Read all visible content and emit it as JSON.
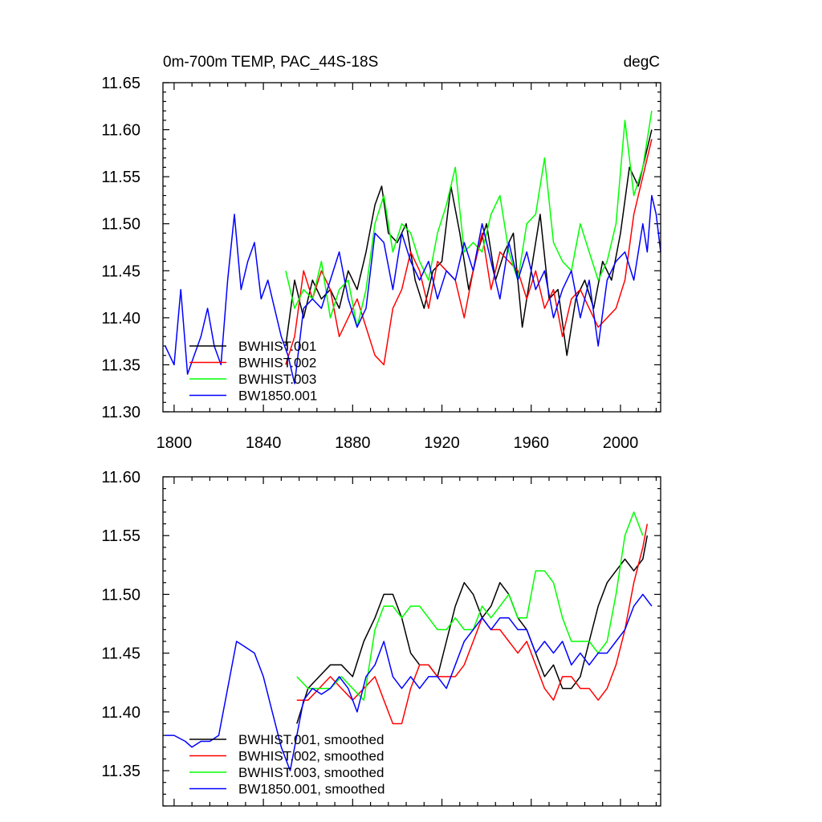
{
  "chart_data": [
    {
      "type": "line",
      "title": "0m-700m TEMP, PAC_44S-18S",
      "unit_label": "degC",
      "xlim": [
        1795,
        2018
      ],
      "ylim": [
        11.3,
        11.65
      ],
      "xticks": [
        1800,
        1840,
        1880,
        1920,
        1960,
        2000
      ],
      "yticks": [
        "11.30",
        "11.35",
        "11.40",
        "11.45",
        "11.50",
        "11.55",
        "11.60",
        "11.65"
      ],
      "legend_position": "bottom-left",
      "series": [
        {
          "name": "BWHIST.001",
          "color": "#000000",
          "x": [
            1850,
            1854,
            1858,
            1862,
            1866,
            1870,
            1874,
            1878,
            1882,
            1886,
            1890,
            1893,
            1896,
            1900,
            1904,
            1908,
            1912,
            1916,
            1920,
            1924,
            1928,
            1932,
            1936,
            1940,
            1944,
            1948,
            1952,
            1956,
            1960,
            1964,
            1968,
            1972,
            1976,
            1980,
            1984,
            1988,
            1992,
            1996,
            2000,
            2004,
            2008,
            2012,
            2014
          ],
          "y": [
            11.37,
            11.44,
            11.4,
            11.44,
            11.42,
            11.43,
            11.41,
            11.45,
            11.43,
            11.47,
            11.52,
            11.54,
            11.49,
            11.48,
            11.5,
            11.44,
            11.41,
            11.45,
            11.46,
            11.54,
            11.49,
            11.43,
            11.47,
            11.5,
            11.44,
            11.47,
            11.49,
            11.39,
            11.45,
            11.51,
            11.42,
            11.43,
            11.36,
            11.42,
            11.44,
            11.41,
            11.46,
            11.44,
            11.49,
            11.56,
            11.54,
            11.58,
            11.6
          ]
        },
        {
          "name": "BWHIST.002",
          "color": "#ff0000",
          "x": [
            1850,
            1854,
            1858,
            1862,
            1866,
            1870,
            1874,
            1878,
            1882,
            1886,
            1890,
            1894,
            1898,
            1902,
            1906,
            1910,
            1914,
            1918,
            1922,
            1926,
            1930,
            1934,
            1938,
            1942,
            1946,
            1950,
            1954,
            1958,
            1962,
            1966,
            1970,
            1974,
            1978,
            1982,
            1986,
            1990,
            1994,
            1998,
            2002,
            2006,
            2010,
            2014
          ],
          "y": [
            11.35,
            11.38,
            11.45,
            11.42,
            11.45,
            11.43,
            11.38,
            11.4,
            11.42,
            11.39,
            11.36,
            11.35,
            11.41,
            11.43,
            11.47,
            11.45,
            11.41,
            11.46,
            11.45,
            11.44,
            11.4,
            11.45,
            11.49,
            11.43,
            11.47,
            11.46,
            11.45,
            11.42,
            11.45,
            11.41,
            11.43,
            11.38,
            11.42,
            11.43,
            11.41,
            11.39,
            11.4,
            11.41,
            11.44,
            11.51,
            11.55,
            11.59
          ]
        },
        {
          "name": "BWHIST.003",
          "color": "#00ff00",
          "x": [
            1850,
            1854,
            1858,
            1862,
            1866,
            1870,
            1874,
            1878,
            1882,
            1886,
            1890,
            1894,
            1898,
            1902,
            1906,
            1910,
            1914,
            1918,
            1922,
            1926,
            1930,
            1934,
            1938,
            1942,
            1946,
            1950,
            1954,
            1958,
            1962,
            1966,
            1970,
            1974,
            1978,
            1982,
            1986,
            1990,
            1994,
            1998,
            2002,
            2006,
            2010,
            2014
          ],
          "y": [
            11.45,
            11.41,
            11.43,
            11.42,
            11.46,
            11.4,
            11.43,
            11.44,
            11.39,
            11.43,
            11.5,
            11.53,
            11.47,
            11.5,
            11.49,
            11.46,
            11.44,
            11.49,
            11.52,
            11.56,
            11.47,
            11.48,
            11.47,
            11.51,
            11.53,
            11.47,
            11.44,
            11.5,
            11.51,
            11.57,
            11.48,
            11.46,
            11.45,
            11.5,
            11.47,
            11.44,
            11.46,
            11.5,
            11.61,
            11.53,
            11.56,
            11.62
          ]
        },
        {
          "name": "BW1850.001",
          "color": "#0000ff",
          "x": [
            1796,
            1800,
            1803,
            1806,
            1809,
            1812,
            1815,
            1818,
            1821,
            1824,
            1827,
            1830,
            1833,
            1836,
            1839,
            1842,
            1845,
            1848,
            1851,
            1854,
            1858,
            1862,
            1866,
            1870,
            1874,
            1878,
            1882,
            1886,
            1890,
            1894,
            1898,
            1902,
            1906,
            1910,
            1914,
            1918,
            1922,
            1926,
            1930,
            1934,
            1938,
            1942,
            1946,
            1950,
            1954,
            1958,
            1962,
            1966,
            1970,
            1974,
            1978,
            1982,
            1986,
            1990,
            1994,
            1998,
            2002,
            2006,
            2010,
            2012,
            2014,
            2016,
            2018
          ],
          "y": [
            11.37,
            11.35,
            11.43,
            11.34,
            11.36,
            11.38,
            11.41,
            11.37,
            11.35,
            11.44,
            11.51,
            11.43,
            11.46,
            11.48,
            11.42,
            11.44,
            11.41,
            11.38,
            11.36,
            11.33,
            11.41,
            11.42,
            11.41,
            11.44,
            11.47,
            11.42,
            11.39,
            11.41,
            11.49,
            11.48,
            11.43,
            11.49,
            11.46,
            11.44,
            11.46,
            11.42,
            11.45,
            11.44,
            11.48,
            11.45,
            11.5,
            11.46,
            11.42,
            11.48,
            11.44,
            11.47,
            11.43,
            11.45,
            11.4,
            11.43,
            11.45,
            11.4,
            11.44,
            11.37,
            11.44,
            11.46,
            11.47,
            11.44,
            11.5,
            11.47,
            11.53,
            11.51,
            11.47
          ]
        }
      ]
    },
    {
      "type": "line",
      "title": "",
      "xlim": [
        1795,
        2018
      ],
      "ylim": [
        11.32,
        11.6
      ],
      "yticks": [
        "11.35",
        "11.40",
        "11.45",
        "11.50",
        "11.55",
        "11.60"
      ],
      "legend_position": "bottom-left",
      "series": [
        {
          "name": "BWHIST.001, smoothed",
          "color": "#000000",
          "x": [
            1855,
            1860,
            1865,
            1870,
            1875,
            1880,
            1885,
            1890,
            1894,
            1898,
            1902,
            1906,
            1910,
            1914,
            1918,
            1922,
            1926,
            1930,
            1934,
            1938,
            1942,
            1946,
            1950,
            1954,
            1958,
            1962,
            1966,
            1970,
            1974,
            1978,
            1982,
            1986,
            1990,
            1994,
            1998,
            2002,
            2006,
            2010,
            2012
          ],
          "y": [
            11.39,
            11.42,
            11.43,
            11.44,
            11.44,
            11.43,
            11.46,
            11.48,
            11.5,
            11.5,
            11.48,
            11.45,
            11.44,
            11.44,
            11.43,
            11.46,
            11.49,
            11.51,
            11.5,
            11.48,
            11.49,
            11.51,
            11.5,
            11.48,
            11.47,
            11.45,
            11.43,
            11.44,
            11.42,
            11.42,
            11.43,
            11.46,
            11.49,
            11.51,
            11.52,
            11.53,
            11.52,
            11.53,
            11.55
          ]
        },
        {
          "name": "BWHIST.002, smoothed",
          "color": "#ff0000",
          "x": [
            1855,
            1860,
            1865,
            1870,
            1875,
            1880,
            1885,
            1890,
            1894,
            1898,
            1902,
            1906,
            1910,
            1914,
            1918,
            1922,
            1926,
            1930,
            1934,
            1938,
            1942,
            1946,
            1950,
            1954,
            1958,
            1962,
            1966,
            1970,
            1974,
            1978,
            1982,
            1986,
            1990,
            1994,
            1998,
            2002,
            2006,
            2010,
            2012
          ],
          "y": [
            11.41,
            11.41,
            11.42,
            11.43,
            11.42,
            11.41,
            11.42,
            11.43,
            11.41,
            11.39,
            11.39,
            11.42,
            11.44,
            11.44,
            11.43,
            11.43,
            11.43,
            11.44,
            11.46,
            11.48,
            11.47,
            11.47,
            11.46,
            11.45,
            11.46,
            11.44,
            11.42,
            11.41,
            11.43,
            11.43,
            11.42,
            11.42,
            11.41,
            11.42,
            11.44,
            11.47,
            11.51,
            11.54,
            11.56
          ]
        },
        {
          "name": "BWHIST.003, smoothed",
          "color": "#00ff00",
          "x": [
            1855,
            1860,
            1865,
            1870,
            1875,
            1880,
            1885,
            1890,
            1894,
            1898,
            1902,
            1906,
            1910,
            1914,
            1918,
            1922,
            1926,
            1930,
            1934,
            1938,
            1942,
            1946,
            1950,
            1954,
            1958,
            1962,
            1966,
            1970,
            1974,
            1978,
            1982,
            1986,
            1990,
            1994,
            1998,
            2002,
            2006,
            2010
          ],
          "y": [
            11.43,
            11.42,
            11.42,
            11.42,
            11.43,
            11.42,
            11.41,
            11.47,
            11.49,
            11.49,
            11.48,
            11.49,
            11.49,
            11.48,
            11.47,
            11.47,
            11.48,
            11.47,
            11.47,
            11.49,
            11.48,
            11.49,
            11.5,
            11.48,
            11.48,
            11.52,
            11.52,
            11.51,
            11.48,
            11.46,
            11.46,
            11.46,
            11.45,
            11.46,
            11.5,
            11.55,
            11.57,
            11.55
          ]
        },
        {
          "name": "BW1850.001, smoothed",
          "color": "#0000ff",
          "x": [
            1796,
            1800,
            1805,
            1808,
            1812,
            1816,
            1820,
            1824,
            1828,
            1832,
            1836,
            1840,
            1844,
            1848,
            1852,
            1855,
            1858,
            1862,
            1866,
            1870,
            1874,
            1878,
            1882,
            1886,
            1890,
            1894,
            1898,
            1902,
            1906,
            1910,
            1914,
            1918,
            1922,
            1926,
            1930,
            1934,
            1938,
            1942,
            1946,
            1950,
            1954,
            1958,
            1962,
            1966,
            1970,
            1974,
            1978,
            1982,
            1986,
            1990,
            1994,
            1998,
            2002,
            2006,
            2010,
            2014
          ],
          "y": [
            11.38,
            11.38,
            11.375,
            11.37,
            11.375,
            11.375,
            11.38,
            11.42,
            11.46,
            11.455,
            11.45,
            11.43,
            11.4,
            11.37,
            11.35,
            11.38,
            11.41,
            11.42,
            11.415,
            11.42,
            11.43,
            11.42,
            11.4,
            11.43,
            11.44,
            11.46,
            11.43,
            11.42,
            11.43,
            11.42,
            11.43,
            11.43,
            11.42,
            11.44,
            11.46,
            11.47,
            11.48,
            11.47,
            11.48,
            11.48,
            11.47,
            11.47,
            11.45,
            11.46,
            11.45,
            11.46,
            11.44,
            11.45,
            11.44,
            11.45,
            11.45,
            11.46,
            11.47,
            11.49,
            11.5,
            11.49
          ]
        }
      ]
    }
  ]
}
